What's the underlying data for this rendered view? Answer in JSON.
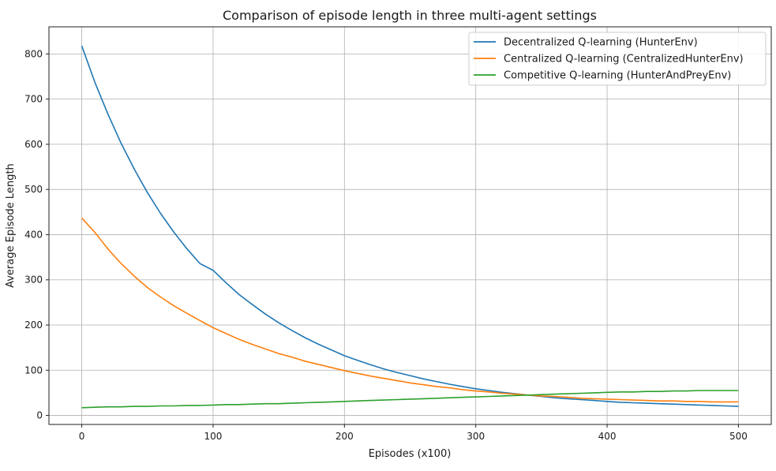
{
  "chart_data": {
    "type": "line",
    "title": "Comparison of episode length in three multi-agent settings",
    "xlabel": "Episodes (x100)",
    "ylabel": "Average Episode Length",
    "xlim": [
      -25,
      525
    ],
    "ylim": [
      -20,
      860
    ],
    "xticks": [
      0,
      100,
      200,
      300,
      400,
      500
    ],
    "yticks": [
      0,
      100,
      200,
      300,
      400,
      500,
      600,
      700,
      800
    ],
    "grid": true,
    "legend_position": "top-right",
    "x": [
      0,
      10,
      20,
      30,
      40,
      50,
      60,
      70,
      80,
      90,
      100,
      110,
      120,
      130,
      140,
      150,
      160,
      170,
      180,
      190,
      200,
      210,
      220,
      230,
      240,
      250,
      260,
      270,
      280,
      290,
      300,
      310,
      320,
      330,
      340,
      350,
      360,
      370,
      380,
      390,
      400,
      410,
      420,
      430,
      440,
      450,
      460,
      470,
      480,
      490,
      500
    ],
    "series": [
      {
        "name": " Decentralized Q-learning (HunterEnv)",
        "color": "#1f77b4",
        "values": [
          818,
          737,
          666,
          602,
          545,
          493,
          447,
          406,
          369,
          336,
          321,
          293,
          267,
          245,
          224,
          205,
          188,
          172,
          158,
          145,
          132,
          122,
          112,
          103,
          95,
          88,
          81,
          75,
          69,
          64,
          59,
          55,
          51,
          48,
          45,
          42,
          39,
          37,
          35,
          33,
          31,
          29,
          28,
          27,
          26,
          25,
          24,
          23,
          22,
          21,
          20
        ]
      },
      {
        "name": "Centralized Q-learning (CentralizedHunterEnv)",
        "color": "#ff7f0e",
        "values": [
          437,
          405,
          368,
          336,
          308,
          283,
          262,
          243,
          226,
          210,
          194,
          181,
          168,
          157,
          147,
          137,
          129,
          120,
          113,
          106,
          99,
          93,
          87,
          82,
          77,
          72,
          68,
          64,
          61,
          57,
          54,
          52,
          49,
          47,
          45,
          43,
          42,
          40,
          38,
          37,
          36,
          35,
          34,
          33,
          32,
          32,
          31,
          31,
          30,
          30,
          30
        ]
      },
      {
        "name": "Competitive Q-learning (HunterAndPreyEnv)",
        "color": "#2ca02c",
        "values": [
          17,
          18,
          19,
          19,
          20,
          20,
          21,
          21,
          22,
          22,
          23,
          24,
          24,
          25,
          26,
          26,
          27,
          28,
          29,
          30,
          31,
          32,
          33,
          34,
          35,
          36,
          37,
          38,
          39,
          40,
          41,
          42,
          43,
          44,
          45,
          46,
          47,
          48,
          49,
          50,
          51,
          52,
          52,
          53,
          53,
          54,
          54,
          55,
          55,
          55,
          55
        ]
      }
    ]
  }
}
